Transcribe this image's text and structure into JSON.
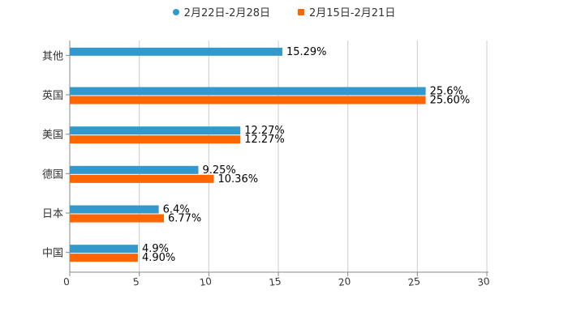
{
  "chart_data": {
    "type": "bar",
    "orientation": "horizontal",
    "categories": [
      "其他",
      "英国",
      "美国",
      "德国",
      "日本",
      "中国"
    ],
    "series": [
      {
        "name": "2月22日-2月28日",
        "values": [
          15.29,
          25.6,
          12.27,
          9.25,
          6.4,
          4.9
        ],
        "labels": [
          "15.29%",
          "25.6%",
          "12.27%",
          "9.25%",
          "6.4%",
          "4.9%"
        ],
        "color": "#3399cc"
      },
      {
        "name": "2月15日-2月21日",
        "values": [
          null,
          25.6,
          12.27,
          10.36,
          6.77,
          4.9
        ],
        "labels": [
          null,
          "25.60%",
          "12.27%",
          "10.36%",
          "6.77%",
          "4.90%"
        ],
        "color": "#ff6600"
      }
    ],
    "xlim": [
      0,
      30
    ],
    "xticks": [
      "0",
      "5",
      "10",
      "15",
      "20",
      "25",
      "30"
    ],
    "grid": true,
    "legend_position": "top-center",
    "gridline_color": "#cccccc",
    "axis_color": "#888888"
  }
}
